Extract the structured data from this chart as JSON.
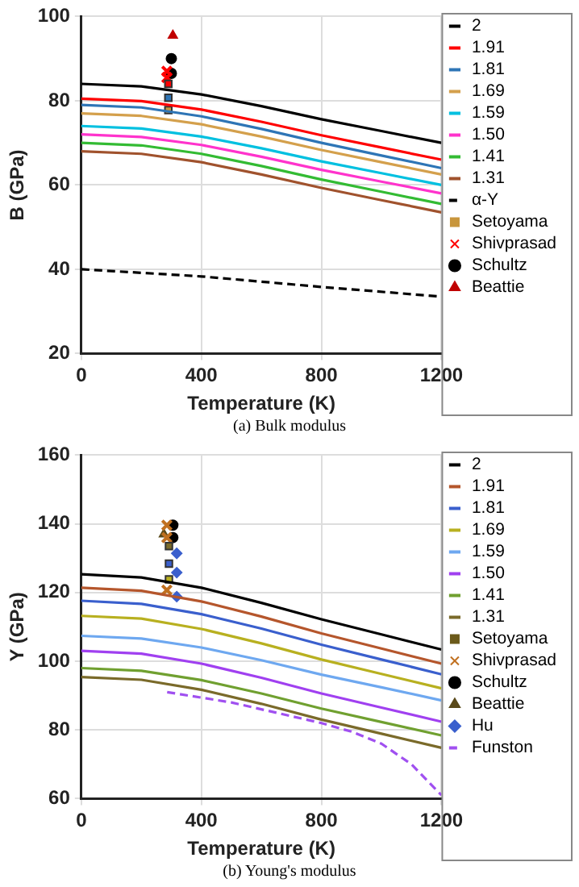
{
  "chart_data": [
    {
      "type": "line",
      "title": "(a) Bulk modulus",
      "xlabel": "Temperature (K)",
      "ylabel": "B (GPa)",
      "xlim": [
        0,
        1200
      ],
      "xticks": [
        0,
        400,
        800,
        1200
      ],
      "ylim": [
        20,
        100
      ],
      "yticks": [
        20,
        40,
        60,
        80,
        100
      ],
      "grid": true,
      "legend": "right",
      "series": [
        {
          "name": "2",
          "color": "#000000",
          "x": [
            0,
            200,
            400,
            600,
            800,
            1000,
            1200
          ],
          "values": [
            84,
            83.4,
            81.5,
            78.7,
            75.6,
            72.8,
            70
          ]
        },
        {
          "name": "1.91",
          "color": "#ff0000",
          "x": [
            0,
            200,
            400,
            600,
            800,
            1000,
            1200
          ],
          "values": [
            80.5,
            79.9,
            77.9,
            75,
            71.8,
            68.9,
            66
          ]
        },
        {
          "name": "1.81",
          "color": "#2e75b6",
          "x": [
            0,
            200,
            400,
            600,
            800,
            1000,
            1200
          ],
          "values": [
            79,
            78.4,
            76.3,
            73.3,
            70,
            67,
            64
          ]
        },
        {
          "name": "1.69",
          "color": "#d4a04c",
          "x": [
            0,
            200,
            400,
            600,
            800,
            1000,
            1200
          ],
          "values": [
            77,
            76.4,
            74.4,
            71.5,
            68.3,
            65.4,
            62.5
          ]
        },
        {
          "name": "1.59",
          "color": "#00c0e0",
          "x": [
            0,
            200,
            400,
            600,
            800,
            1000,
            1200
          ],
          "values": [
            74,
            73.4,
            71.5,
            68.7,
            65.6,
            62.8,
            60
          ]
        },
        {
          "name": "1.50",
          "color": "#ff33cc",
          "x": [
            0,
            200,
            400,
            600,
            800,
            1000,
            1200
          ],
          "values": [
            72,
            71.4,
            69.5,
            66.7,
            63.6,
            60.8,
            58
          ]
        },
        {
          "name": "1.41",
          "color": "#33bb33",
          "x": [
            0,
            200,
            400,
            600,
            800,
            1000,
            1200
          ],
          "values": [
            70,
            69.4,
            67.4,
            64.5,
            61.3,
            58.4,
            55.5
          ]
        },
        {
          "name": "1.31",
          "color": "#a0522d",
          "x": [
            0,
            200,
            400,
            600,
            800,
            1000,
            1200
          ],
          "values": [
            68,
            67.4,
            65.4,
            62.5,
            59.3,
            56.4,
            53.5
          ]
        },
        {
          "name": "α-Y",
          "color": "#000000",
          "line_style": "dashed",
          "x": [
            0,
            400,
            800,
            1200
          ],
          "values": [
            40,
            38.3,
            35.8,
            33.5
          ]
        },
        {
          "name": "Setoyama",
          "type": "scatter",
          "marker": "square",
          "color": "#c8963c",
          "colors": [
            "#c8963c",
            "#2e75b6",
            "#ff0000"
          ],
          "x": [
            290,
            290,
            290
          ],
          "values": [
            77.8,
            80.7,
            84
          ]
        },
        {
          "name": "Shivprasad",
          "type": "scatter",
          "marker": "cross",
          "color": "#ff0000",
          "x": [
            285,
            285
          ],
          "values": [
            85.5,
            87
          ]
        },
        {
          "name": "Schultz",
          "type": "scatter",
          "marker": "circle",
          "color": "#000000",
          "x": [
            300,
            300
          ],
          "values": [
            86.5,
            90
          ]
        },
        {
          "name": "Beattie",
          "type": "scatter",
          "marker": "triangle",
          "color": "#c00000",
          "x": [
            305
          ],
          "values": [
            95.5
          ]
        }
      ]
    },
    {
      "type": "line",
      "title": "(b) Young's modulus",
      "xlabel": "Temperature (K)",
      "ylabel": "Y (GPa)",
      "xlim": [
        0,
        1200
      ],
      "xticks": [
        0,
        400,
        800,
        1200
      ],
      "ylim": [
        60,
        160
      ],
      "yticks": [
        60,
        80,
        100,
        120,
        140,
        160
      ],
      "grid": true,
      "legend": "right",
      "series": [
        {
          "name": "2",
          "color": "#000000",
          "x": [
            0,
            200,
            400,
            600,
            800,
            1000,
            1200
          ],
          "values": [
            125.3,
            124.4,
            121.4,
            117,
            112.2,
            107.8,
            103.4
          ]
        },
        {
          "name": "1.91",
          "color": "#b5562c",
          "x": [
            0,
            200,
            400,
            600,
            800,
            1000,
            1200
          ],
          "values": [
            121.4,
            120.5,
            117.4,
            113,
            108.1,
            103.7,
            99.3
          ]
        },
        {
          "name": "1.81",
          "color": "#3a5fcd",
          "x": [
            0,
            200,
            400,
            600,
            800,
            1000,
            1200
          ],
          "values": [
            117.6,
            116.7,
            113.7,
            109.5,
            104.8,
            100.5,
            96.2
          ]
        },
        {
          "name": "1.69",
          "color": "#b8b020",
          "x": [
            0,
            200,
            400,
            600,
            800,
            1000,
            1200
          ],
          "values": [
            113.2,
            112.4,
            109.4,
            105.2,
            100.5,
            96.3,
            92.1
          ]
        },
        {
          "name": "1.59",
          "color": "#6ea8f0",
          "x": [
            0,
            200,
            400,
            600,
            800,
            1000,
            1200
          ],
          "values": [
            107.4,
            106.6,
            104,
            100.3,
            96.1,
            92.4,
            88.6
          ]
        },
        {
          "name": "1.50",
          "color": "#a040f0",
          "x": [
            0,
            200,
            400,
            600,
            800,
            1000,
            1200
          ],
          "values": [
            103,
            102.2,
            99.3,
            95.2,
            90.6,
            86.5,
            82.4
          ]
        },
        {
          "name": "1.41",
          "color": "#70a030",
          "x": [
            0,
            200,
            400,
            600,
            800,
            1000,
            1200
          ],
          "values": [
            98,
            97.2,
            94.5,
            90.6,
            86.2,
            82.3,
            78.4
          ]
        },
        {
          "name": "1.31",
          "color": "#7a6a2a",
          "x": [
            0,
            200,
            400,
            600,
            800,
            1000,
            1200
          ],
          "values": [
            95.4,
            94.6,
            91.7,
            87.6,
            83,
            78.9,
            74.8
          ]
        },
        {
          "name": "Setoyama",
          "type": "scatter",
          "marker": "square",
          "color": "#6b5a1a",
          "colors": [
            "#7a6a2a",
            "#3a5fcd",
            "#b8b020"
          ],
          "x": [
            292,
            292,
            292
          ],
          "values": [
            133.5,
            128.4,
            123.8
          ]
        },
        {
          "name": "Shivprasad",
          "type": "scatter",
          "marker": "cross",
          "color": "#c07020",
          "x": [
            285,
            285,
            285
          ],
          "values": [
            139.6,
            136,
            120.7
          ]
        },
        {
          "name": "Schultz",
          "type": "scatter",
          "marker": "circle",
          "color": "#000000",
          "x": [
            305,
            305
          ],
          "values": [
            139.6,
            136
          ]
        },
        {
          "name": "Beattie",
          "type": "scatter",
          "marker": "triangle",
          "color": "#5a4a1a",
          "x": [
            275
          ],
          "values": [
            137
          ]
        },
        {
          "name": "Hu",
          "type": "scatter",
          "marker": "diamond",
          "color": "#3a5fcd",
          "x": [
            318,
            318,
            318
          ],
          "values": [
            131.4,
            125.8,
            118.8
          ]
        },
        {
          "name": "Funston",
          "color": "#a050f0",
          "line_style": "dashed",
          "x": [
            286,
            500,
            700,
            800,
            900,
            1000,
            1100,
            1200
          ],
          "values": [
            91,
            88,
            84,
            82,
            79.5,
            76,
            70,
            61
          ]
        }
      ]
    }
  ]
}
